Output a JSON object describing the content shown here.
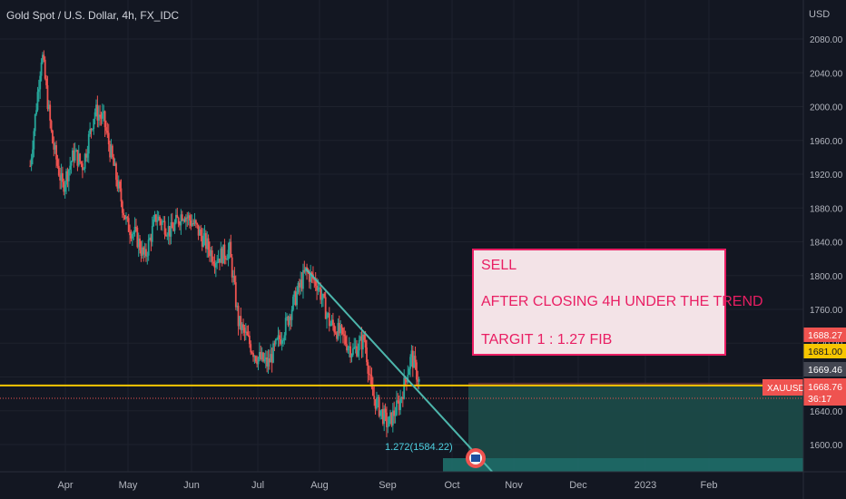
{
  "header": {
    "title": "Gold Spot / U.S. Dollar, 4h, FX_IDC",
    "currency": "USD"
  },
  "note": {
    "line1": "SELL",
    "line2": "AFTER CLOSING 4H UNDER THE TREND",
    "line3": "TARGIT 1 : 1.27 FIB"
  },
  "fib_label": "1.272(1584.22)",
  "price_tags": {
    "top_red": "1688.27",
    "yellow": "1681.00",
    "gray": "1669.46",
    "symbol": "XAUUSD",
    "current": "1668.76",
    "countdown": "36:17"
  },
  "colors": {
    "background": "#131722",
    "up_candle": "#26a69a",
    "down_candle": "#ef5350",
    "trendline": "#4db6ac",
    "support_line": "#f7c600",
    "note_text": "#e91e63",
    "note_bg": "#f3e3e7",
    "short_target_zone": "#1b4a48",
    "short_stop_zone": "#5a3036"
  },
  "chart_data": {
    "type": "candlestick",
    "title": "Gold Spot / U.S. Dollar, 4h, FX_IDC",
    "xlabel": "",
    "ylabel": "USD",
    "ylim": [
      1570,
      2100
    ],
    "y_ticks": [
      1600,
      1640,
      1680,
      1720,
      1760,
      1800,
      1840,
      1880,
      1920,
      1960,
      2000,
      2040,
      2080
    ],
    "x_tick_labels": [
      "Apr",
      "May",
      "Jun",
      "Jul",
      "Aug",
      "Sep",
      "Oct",
      "Nov",
      "Dec",
      "2023",
      "Feb"
    ],
    "price_path": [
      {
        "t": 0.0,
        "price": 1930
      },
      {
        "t": 0.8,
        "price": 2065
      },
      {
        "t": 1.5,
        "price": 1960
      },
      {
        "t": 2.2,
        "price": 1905
      },
      {
        "t": 3.0,
        "price": 1945
      },
      {
        "t": 3.6,
        "price": 1930
      },
      {
        "t": 4.4,
        "price": 1995
      },
      {
        "t": 5.0,
        "price": 1985
      },
      {
        "t": 6.0,
        "price": 1905
      },
      {
        "t": 6.6,
        "price": 1860
      },
      {
        "t": 7.2,
        "price": 1848
      },
      {
        "t": 7.8,
        "price": 1820
      },
      {
        "t": 8.6,
        "price": 1870
      },
      {
        "t": 9.6,
        "price": 1852
      },
      {
        "t": 10.4,
        "price": 1875
      },
      {
        "t": 11.2,
        "price": 1860
      },
      {
        "t": 12.6,
        "price": 1820
      },
      {
        "t": 13.6,
        "price": 1830
      },
      {
        "t": 14.2,
        "price": 1745
      },
      {
        "t": 15.4,
        "price": 1705
      },
      {
        "t": 16.2,
        "price": 1695
      },
      {
        "t": 17.4,
        "price": 1740
      },
      {
        "t": 18.0,
        "price": 1770
      },
      {
        "t": 18.8,
        "price": 1805
      },
      {
        "t": 19.6,
        "price": 1790
      },
      {
        "t": 20.4,
        "price": 1745
      },
      {
        "t": 21.2,
        "price": 1730
      },
      {
        "t": 22.0,
        "price": 1710
      },
      {
        "t": 22.8,
        "price": 1725
      },
      {
        "t": 23.3,
        "price": 1660
      },
      {
        "t": 24.4,
        "price": 1623
      },
      {
        "t": 25.2,
        "price": 1650
      },
      {
        "t": 26.0,
        "price": 1705
      },
      {
        "t": 26.6,
        "price": 1670
      }
    ],
    "levels": [
      {
        "name": "support",
        "price": 1670
      },
      {
        "name": "current",
        "price": 1668.76
      },
      {
        "name": "fib_1.272",
        "price": 1584.22
      }
    ],
    "trendline": [
      {
        "t": 18.8,
        "price": 1808
      },
      {
        "t": 31.5,
        "price": 1568
      }
    ],
    "grid": true
  }
}
